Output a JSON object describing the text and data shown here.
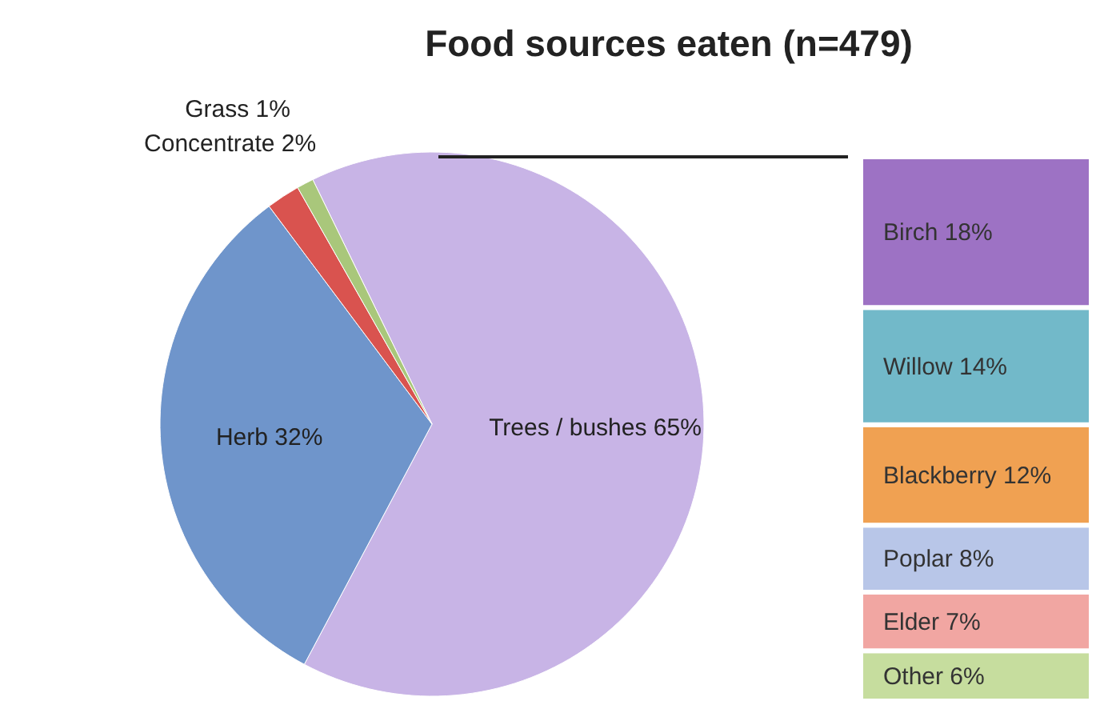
{
  "chart_data": [
    {
      "type": "pie",
      "title": "Food sources eaten (n=479)",
      "categories": [
        "Trees / bushes",
        "Herb",
        "Concentrate",
        "Grass"
      ],
      "values": [
        65,
        32,
        2,
        1
      ],
      "colors": [
        "#c8b4e6",
        "#6f95cb",
        "#d9534f",
        "#a9c77b"
      ],
      "value_labels": [
        "65%",
        "32%",
        "2%",
        "1%"
      ]
    },
    {
      "type": "bar",
      "stacked": true,
      "categories": [
        null
      ],
      "series": [
        {
          "name": "Other",
          "color": "#c6dd9e",
          "values": [
            6
          ],
          "value_labels": [
            "6%"
          ]
        },
        {
          "name": "Elder",
          "color": "#f1a6a2",
          "values": [
            7
          ],
          "value_labels": [
            "7%"
          ]
        },
        {
          "name": "Poplar",
          "color": "#b8c6e8",
          "values": [
            8
          ],
          "value_labels": [
            "8%"
          ]
        },
        {
          "name": "Blackberry",
          "color": "#f0a152",
          "values": [
            12
          ],
          "value_labels": [
            "12%"
          ]
        },
        {
          "name": "Willow",
          "color": "#72b9c9",
          "values": [
            14
          ],
          "value_labels": [
            "14%"
          ]
        },
        {
          "name": "Birch",
          "color": "#9d72c4",
          "values": [
            18
          ],
          "value_labels": [
            "18%"
          ]
        }
      ]
    }
  ]
}
